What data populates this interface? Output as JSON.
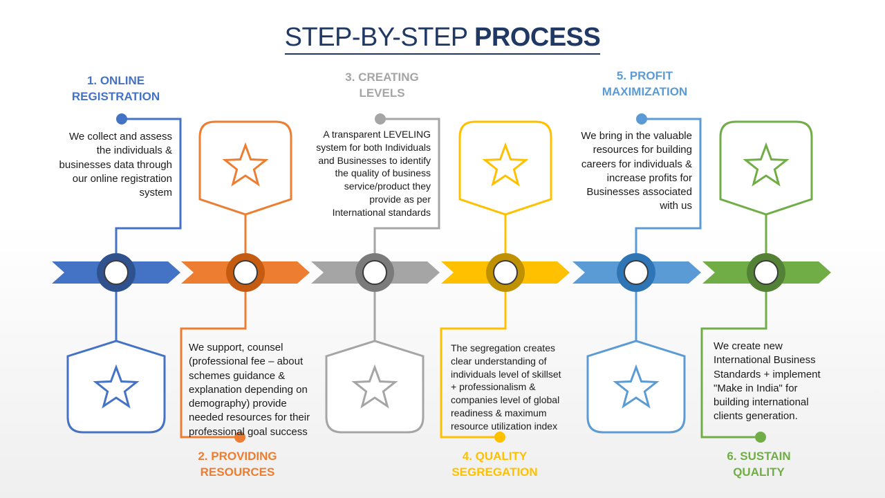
{
  "title": {
    "part1": "STEP-BY-STEP ",
    "part2": "PROCESS"
  },
  "steps": [
    {
      "heading": "1. ONLINE\nREGISTRATION",
      "color": "#4472c4",
      "dark": "#2f528f",
      "text": "We collect and assess\nthe individuals &\nbusinesses data through\nour online registration\nsystem",
      "icon": "star-icon"
    },
    {
      "heading": "2. PROVIDING\nRESOURCES",
      "color": "#ed7d31",
      "dark": "#c55a11",
      "text": "We support, counsel\n(professional fee – about\nschemes guidance &\nexplanation depending on\ndemography) provide\nneeded resources for their\nprofessional goal success",
      "icon": "star-icon"
    },
    {
      "heading": "3. CREATING\nLEVELS",
      "color": "#a5a5a5",
      "dark": "#7b7b7b",
      "text": "A transparent LEVELING\nsystem for both Individuals\nand Businesses to identify\nthe quality of business\nservice/product  they\nprovide as per\nInternational standards",
      "icon": "star-icon"
    },
    {
      "heading": "4. QUALITY\nSEGREGATION",
      "color": "#ffc000",
      "dark": "#bf9000",
      "text": "The segregation creates\nclear understanding of\nindividuals level of skillset\n+ professionalism &\ncompanies level of global\nreadiness & maximum\nresource utilization index",
      "icon": "star-icon"
    },
    {
      "heading": "5. PROFIT\nMAXIMIZATION",
      "color": "#5b9bd5",
      "dark": "#2e75b6",
      "text": "We bring in the valuable\nresources for building\ncareers for individuals &\nincrease profits for\nBusinesses associated\nwith us",
      "icon": "star-icon"
    },
    {
      "heading": "6. SUSTAIN\nQUALITY",
      "color": "#70ad47",
      "dark": "#538135",
      "text": "We create new\nInternational Business\nStandards + implement\n\"Make in India\" for\nbuilding international\nclients generation.",
      "icon": "star-icon"
    }
  ]
}
